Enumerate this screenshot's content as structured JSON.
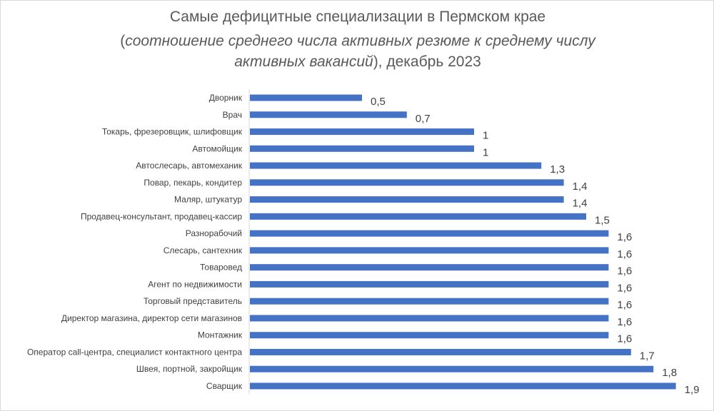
{
  "chart_data": {
    "type": "bar",
    "orientation": "horizontal",
    "title_line1": "Самые дефицитные специализации в Пермском крае",
    "title_line2_italic": "соотношение среднего числа активных резюме к среднему числу",
    "title_line3_italic": "активных вакансий",
    "title_line3_rest": "), декабрь 2023",
    "categories": [
      "Дворник",
      "Врач",
      "Токарь, фрезеровщик, шлифовщик",
      "Автомойщик",
      "Автослесарь, автомеханик",
      "Повар, пекарь, кондитер",
      "Маляр, штукатур",
      "Продавец-консультант, продавец-кассир",
      "Разнорабочий",
      "Слесарь, сантехник",
      "Товаровед",
      "Агент по недвижимости",
      "Торговый представитель",
      "Директор магазина, директор сети магазинов",
      "Монтажник",
      "Оператор call-центра, специалист контактного центра",
      "Швея, портной, закройщик",
      "Сварщик"
    ],
    "values": [
      0.5,
      0.7,
      1,
      1,
      1.3,
      1.4,
      1.4,
      1.5,
      1.6,
      1.6,
      1.6,
      1.6,
      1.6,
      1.6,
      1.6,
      1.7,
      1.8,
      1.9
    ],
    "data_labels": [
      "0,5",
      "0,7",
      "1",
      "1",
      "1,3",
      "1,4",
      "1,4",
      "1,5",
      "1,6",
      "1,6",
      "1,6",
      "1,6",
      "1,6",
      "1,6",
      "1,6",
      "1,7",
      "1,8",
      "1,9"
    ],
    "xlim": [
      0,
      2
    ],
    "grid": false,
    "bar_color": "#4472c4"
  }
}
